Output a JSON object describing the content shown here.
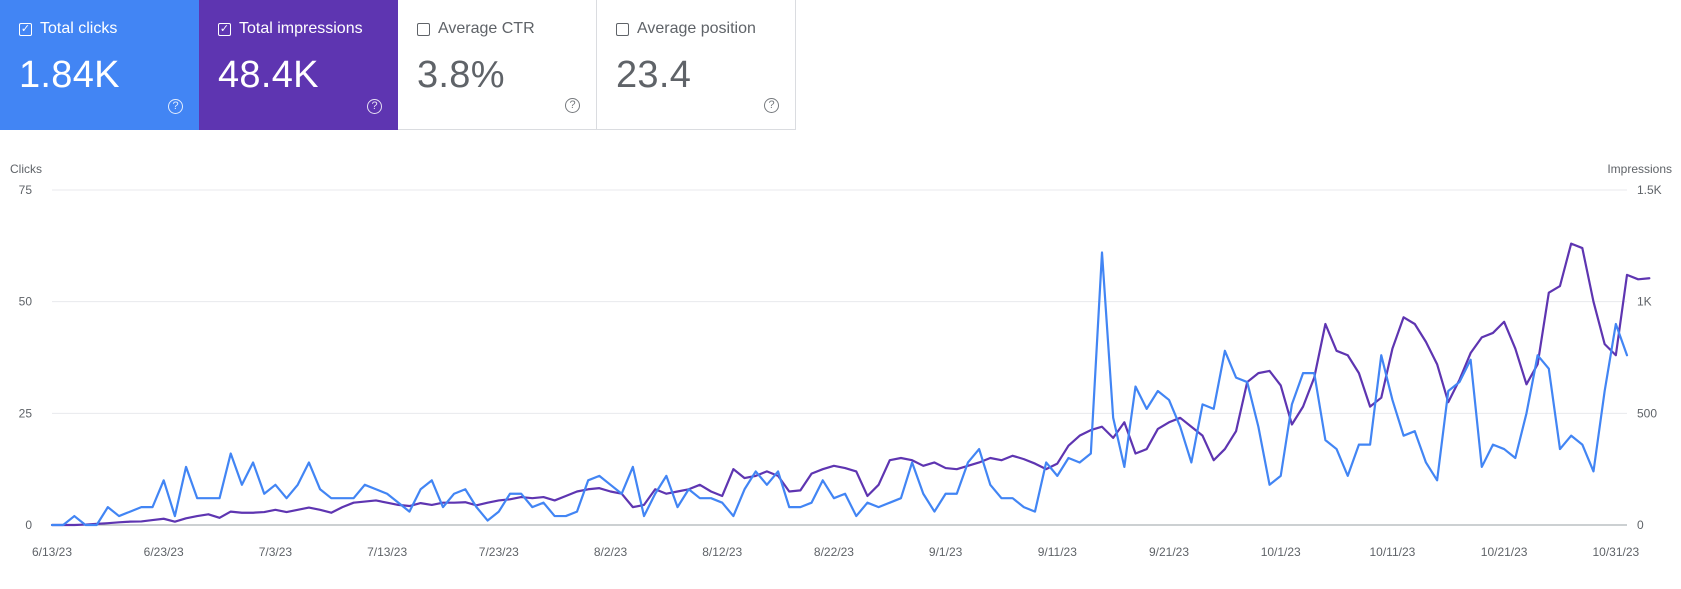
{
  "cards": [
    {
      "label": "Total clicks",
      "value": "1.84K",
      "checked": true,
      "bg": "#4285f4"
    },
    {
      "label": "Total impressions",
      "value": "48.4K",
      "checked": true,
      "bg": "#5e35b1"
    },
    {
      "label": "Average CTR",
      "value": "3.8%",
      "checked": false
    },
    {
      "label": "Average position",
      "value": "23.4",
      "checked": false
    }
  ],
  "help_glyph": "?",
  "check_glyph": "✓",
  "chart_data": {
    "type": "line",
    "y_left_label": "Clicks",
    "y_right_label": "Impressions",
    "y_left_ticks": [
      "0",
      "25",
      "50",
      "75"
    ],
    "y_right_ticks": [
      "0",
      "500",
      "1K",
      "1.5K"
    ],
    "ylim_left": [
      0,
      75
    ],
    "ylim_right": [
      0,
      1500
    ],
    "x_ticks": [
      "6/13/23",
      "6/23/23",
      "7/3/23",
      "7/13/23",
      "7/23/23",
      "8/2/23",
      "8/12/23",
      "8/22/23",
      "9/1/23",
      "9/11/23",
      "9/21/23",
      "10/1/23",
      "10/11/23",
      "10/21/23",
      "10/31/23"
    ],
    "x_tick_every": 10,
    "grid": true,
    "series": [
      {
        "name": "Total clicks",
        "axis": "left",
        "color": "#4285f4",
        "values": [
          0,
          0,
          2,
          0,
          0,
          4,
          2,
          3,
          4,
          4,
          10,
          2,
          13,
          6,
          6,
          6,
          16,
          9,
          14,
          7,
          9,
          6,
          9,
          14,
          8,
          6,
          6,
          6,
          9,
          8,
          7,
          5,
          3,
          8,
          10,
          4,
          7,
          8,
          4,
          1,
          3,
          7,
          7,
          4,
          5,
          2,
          2,
          3,
          10,
          11,
          9,
          7,
          13,
          2,
          7,
          11,
          4,
          8,
          6,
          6,
          5,
          2,
          8,
          12,
          9,
          12,
          4,
          4,
          5,
          10,
          6,
          7,
          2,
          5,
          4,
          5,
          6,
          14,
          7,
          3,
          7,
          7,
          14,
          17,
          9,
          6,
          6,
          4,
          3,
          14,
          11,
          15,
          14,
          16,
          61,
          24,
          13,
          31,
          26,
          30,
          28,
          22,
          14,
          27,
          26,
          39,
          33,
          32,
          22,
          9,
          11,
          27,
          34,
          34,
          19,
          17,
          11,
          18,
          18,
          38,
          28,
          20,
          21,
          14,
          10,
          30,
          32,
          37,
          13,
          18,
          17,
          15,
          25,
          38,
          35,
          17,
          20,
          18,
          12,
          30,
          45,
          38
        ],
        "last_date": "10/31/23"
      },
      {
        "name": "Total impressions",
        "axis": "right",
        "color": "#5e35b1",
        "values": [
          0,
          0,
          0,
          2,
          5,
          8,
          12,
          15,
          16,
          22,
          28,
          15,
          30,
          40,
          48,
          32,
          60,
          55,
          55,
          58,
          68,
          58,
          68,
          78,
          68,
          55,
          80,
          100,
          105,
          110,
          100,
          90,
          85,
          98,
          90,
          100,
          100,
          102,
          88,
          100,
          110,
          115,
          125,
          120,
          125,
          110,
          130,
          150,
          160,
          165,
          150,
          140,
          80,
          90,
          160,
          140,
          150,
          160,
          180,
          150,
          130,
          250,
          210,
          220,
          240,
          220,
          150,
          155,
          230,
          250,
          265,
          255,
          240,
          130,
          180,
          290,
          300,
          290,
          265,
          280,
          255,
          250,
          265,
          280,
          300,
          290,
          310,
          295,
          275,
          250,
          275,
          355,
          400,
          425,
          440,
          390,
          460,
          320,
          340,
          430,
          460,
          480,
          440,
          400,
          290,
          340,
          420,
          640,
          680,
          690,
          625,
          450,
          530,
          660,
          900,
          780,
          760,
          680,
          530,
          570,
          790,
          930,
          900,
          820,
          720,
          550,
          650,
          770,
          840,
          860,
          910,
          790,
          630,
          720,
          1040,
          1070,
          1260,
          1240,
          1000,
          810,
          760,
          1120,
          1100,
          1105
        ]
      }
    ]
  }
}
